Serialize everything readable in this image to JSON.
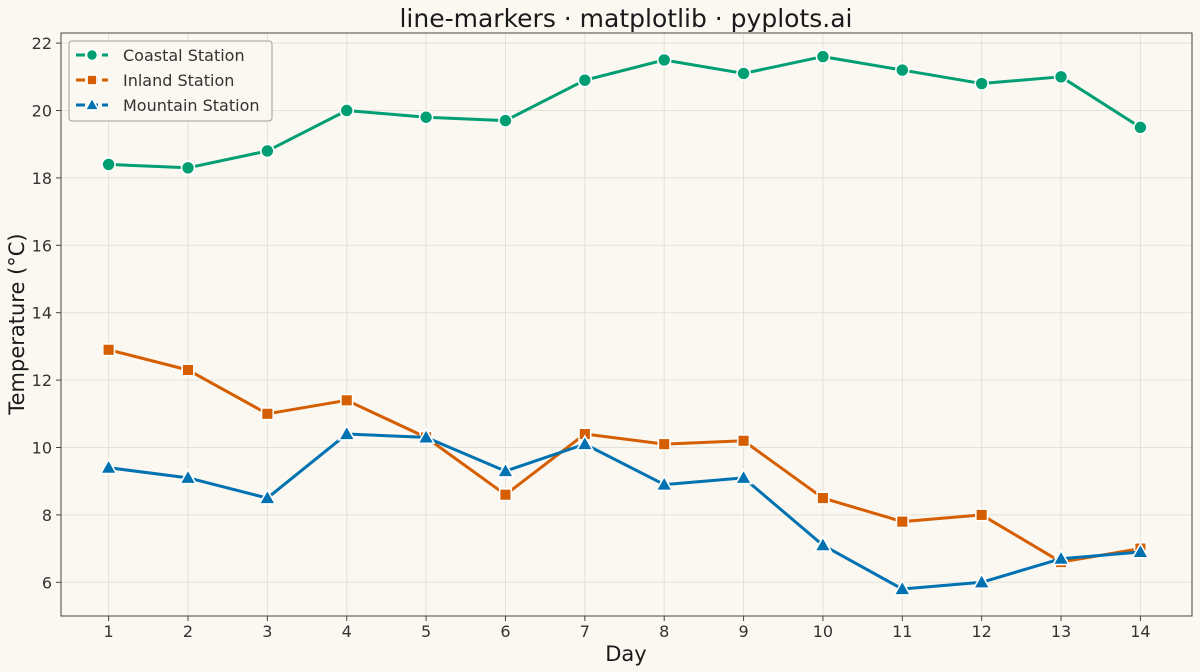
{
  "chart_data": {
    "type": "line",
    "title": "line-markers · matplotlib · pyplots.ai",
    "xlabel": "Day",
    "ylabel": "Temperature (°C)",
    "x": [
      1,
      2,
      3,
      4,
      5,
      6,
      7,
      8,
      9,
      10,
      11,
      12,
      13,
      14
    ],
    "xlim": [
      0.4,
      14.65
    ],
    "ylim": [
      5.0,
      22.3
    ],
    "yticks": [
      6,
      8,
      10,
      12,
      14,
      16,
      18,
      20,
      22
    ],
    "grid": true,
    "legend_position": "top-left",
    "series": [
      {
        "name": "Coastal Station",
        "marker": "circle",
        "color": "#009E73",
        "values": [
          18.4,
          18.3,
          18.8,
          20.0,
          19.8,
          19.7,
          20.9,
          21.5,
          21.1,
          21.6,
          21.2,
          20.8,
          21.0,
          19.5
        ]
      },
      {
        "name": "Inland Station",
        "marker": "square",
        "color": "#D55E00",
        "values": [
          12.9,
          12.3,
          11.0,
          11.4,
          10.3,
          8.6,
          10.4,
          10.1,
          10.2,
          8.5,
          7.8,
          8.0,
          6.6,
          7.0
        ]
      },
      {
        "name": "Mountain Station",
        "marker": "triangle",
        "color": "#0072B2",
        "values": [
          9.4,
          9.1,
          8.5,
          10.4,
          10.3,
          9.3,
          10.1,
          8.9,
          9.1,
          7.1,
          5.8,
          6.0,
          6.7,
          6.9
        ]
      }
    ]
  },
  "colors": {
    "background": "#FAF8F1",
    "axes_edge": "#444444",
    "grid": "#E4E1D8",
    "text": "#1a1a1a"
  }
}
